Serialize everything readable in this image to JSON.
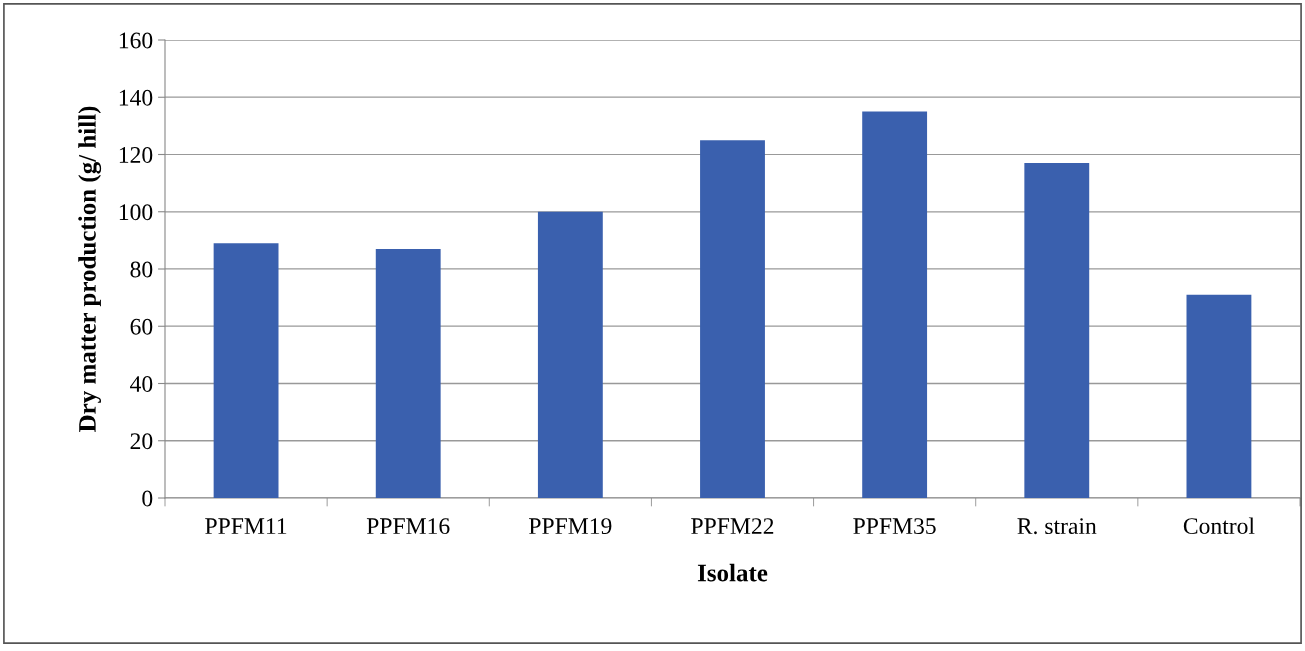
{
  "chart_data": {
    "type": "bar",
    "xlabel": "Isolate",
    "ylabel": "Dry matter production (g/ hill)",
    "categories": [
      "PPFM11",
      "PPFM16",
      "PPFM19",
      "PPFM22",
      "PPFM35",
      "R. strain",
      "Control"
    ],
    "values": [
      89,
      87,
      100,
      125,
      135,
      117,
      71
    ],
    "color": "#3a60ae",
    "ylim": [
      0,
      160
    ],
    "yticks": [
      0,
      20,
      40,
      60,
      80,
      100,
      120,
      140,
      160
    ],
    "grid": "y"
  }
}
